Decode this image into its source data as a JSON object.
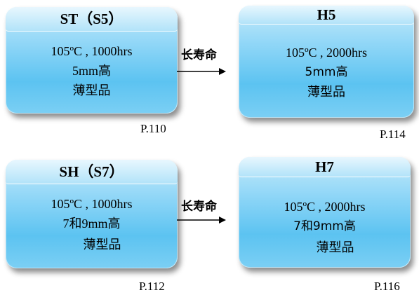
{
  "boxes": [
    {
      "title": "ST（S5）",
      "line1": "105ºC , 1000hrs",
      "line2": "5mm高",
      "line3": "薄型品"
    },
    {
      "title": "H5",
      "line1": "105ºC , 2000hrs",
      "line2": "5mm高",
      "line3": "薄型品"
    },
    {
      "title": "SH（S7）",
      "line1": "105ºC , 1000hrs",
      "line2": "7和9mm高",
      "line3": "薄型品"
    },
    {
      "title": "H7",
      "line1": "105ºC , 2000hrs",
      "line2": "7和9mm高",
      "line3": "薄型品"
    }
  ],
  "arrows": [
    {
      "label": "长寿命"
    },
    {
      "label": "长寿命"
    }
  ],
  "pages": [
    "P.110",
    "P.114",
    "P.112",
    "P.116"
  ]
}
